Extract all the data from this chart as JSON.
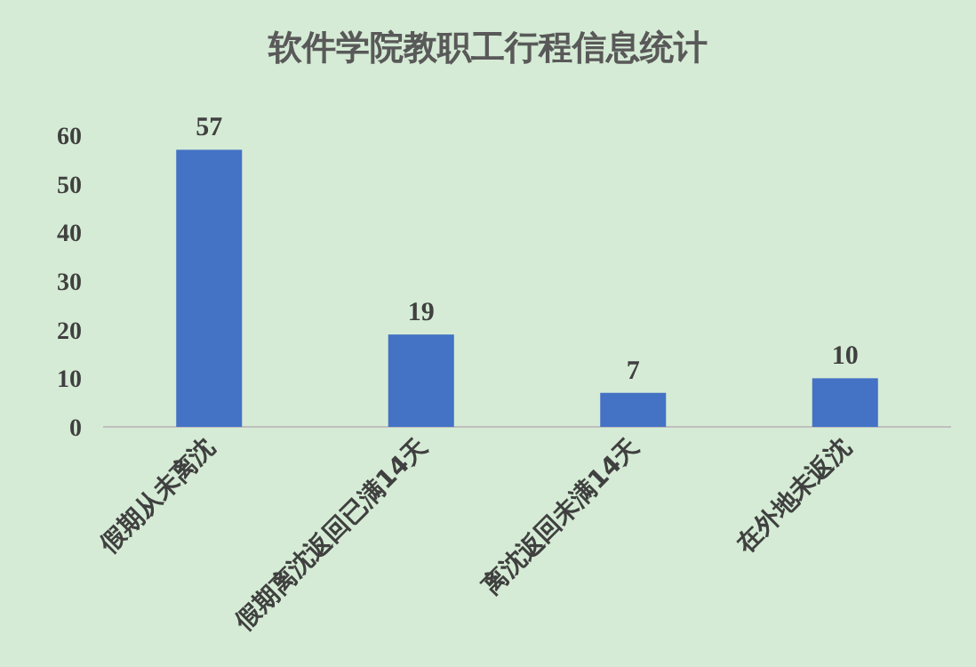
{
  "chart_data": {
    "type": "bar",
    "title": "软件学院教职工行程信息统计",
    "categories": [
      "假期从未离沈",
      "假期离沈返回已满14天",
      "离沈返回未满14天",
      "在外地未返沈"
    ],
    "values": [
      57,
      19,
      7,
      10
    ],
    "color": "#4472c4",
    "ylim": [
      0,
      60
    ],
    "yticks": [
      0,
      10,
      20,
      30,
      40,
      50,
      60
    ],
    "data_labels": true,
    "grid": false
  }
}
